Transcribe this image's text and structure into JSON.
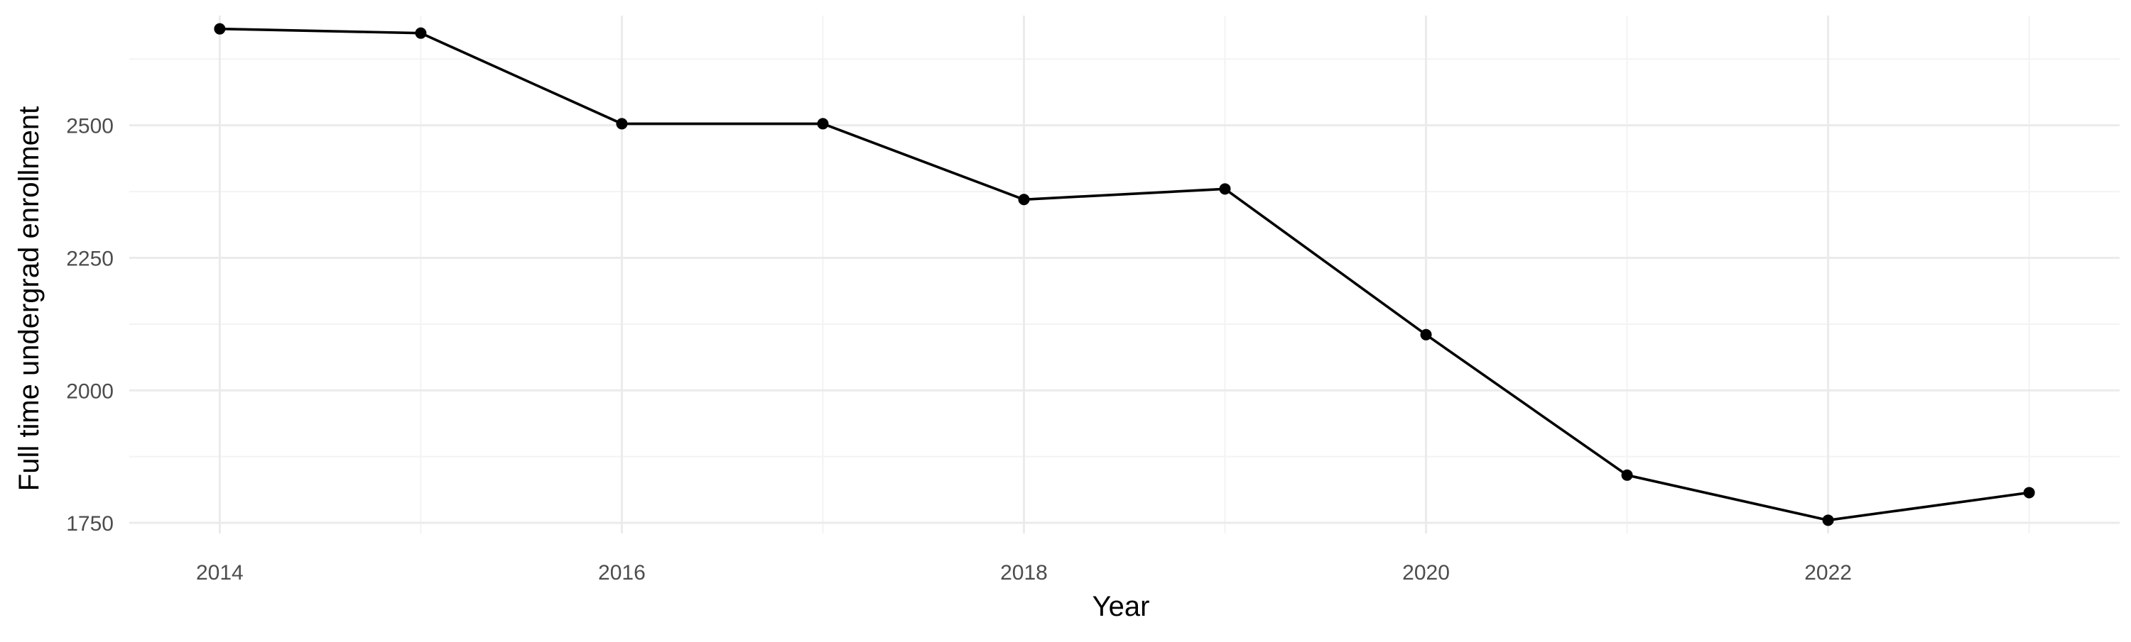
{
  "chart_data": {
    "type": "line",
    "title": "",
    "xlabel": "Year",
    "ylabel": "Full time undergrad enrollment",
    "x": [
      2014,
      2015,
      2016,
      2017,
      2018,
      2019,
      2020,
      2021,
      2022,
      2023
    ],
    "series": [
      {
        "values": [
          2682,
          2674,
          2503,
          2503,
          2360,
          2380,
          2105,
          1840,
          1755,
          1807
        ],
        "color": "#000000"
      }
    ],
    "xlim": [
      2013.55,
      2023.45
    ],
    "ylim": [
      1730,
      2707
    ],
    "x_ticks": [
      2014,
      2016,
      2018,
      2020,
      2022
    ],
    "x_tick_labels": [
      "2014",
      "2016",
      "2018",
      "2020",
      "2022"
    ],
    "y_ticks": [
      1750,
      2000,
      2250,
      2500
    ],
    "y_tick_labels": [
      "1750",
      "2000",
      "2250",
      "2500"
    ],
    "grid": true,
    "legend": "none",
    "markers": true
  }
}
